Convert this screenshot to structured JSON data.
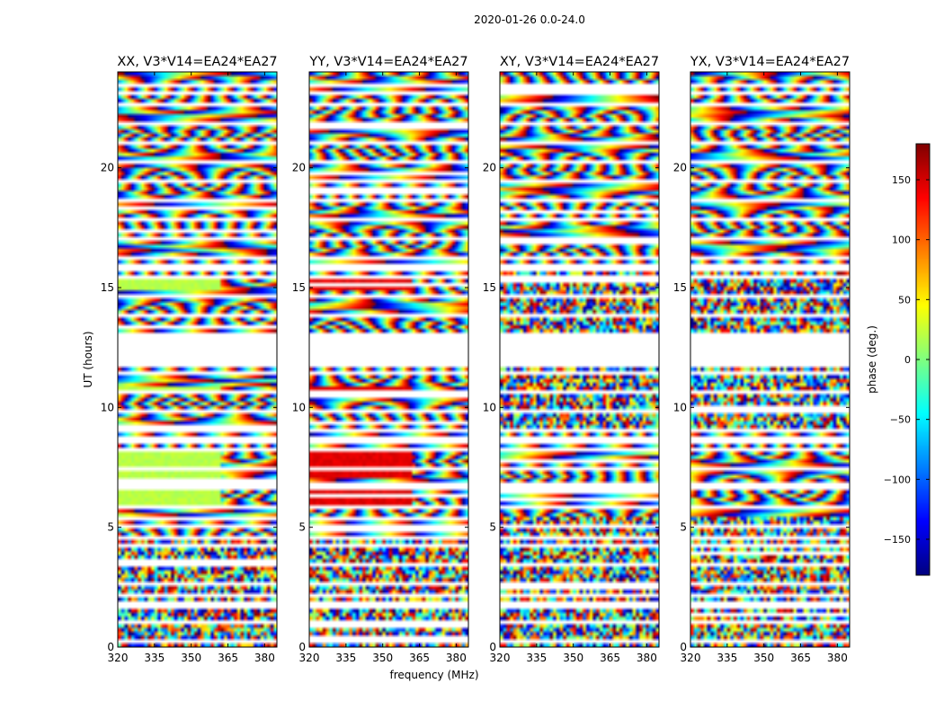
{
  "chart_data": {
    "type": "heatmap",
    "title": "2020-01-26 0.0-24.0",
    "xlabel": "frequency (MHz)",
    "ylabel": "UT (hours)",
    "xlim": [
      320,
      385
    ],
    "ylim": [
      0,
      24
    ],
    "xticks": [
      320,
      335,
      350,
      365,
      380
    ],
    "yticks": [
      0,
      5,
      10,
      15,
      20
    ],
    "panels": [
      {
        "title": "XX, V3*V14=EA24*EA27",
        "flat_phase": 20
      },
      {
        "title": "YY, V3*V14=EA24*EA27",
        "flat_phase": 145
      },
      {
        "title": "XY, V3*V14=EA24*EA27",
        "flat_phase": null
      },
      {
        "title": "YX, V3*V14=EA24*EA27",
        "flat_phase": null
      }
    ],
    "colorbar": {
      "label": "phase (deg.)",
      "range": [
        -180,
        180
      ],
      "ticks": [
        -150,
        -100,
        -50,
        0,
        50,
        100,
        150
      ],
      "colormap": "jet"
    },
    "flagged_ut_ranges": [
      [
        11.65,
        13.0
      ],
      [
        8.55,
        8.75
      ],
      [
        6.6,
        6.85
      ],
      [
        15.75,
        15.95
      ],
      [
        4.45,
        4.6
      ],
      [
        2.05,
        2.2
      ],
      [
        1.55,
        1.7
      ],
      [
        23.1,
        23.2
      ],
      [
        10.55,
        10.7
      ],
      [
        5.7,
        5.85
      ]
    ],
    "flat_phase_ut_ranges": [
      [
        14.9,
        15.3
      ],
      [
        7.1,
        8.2
      ],
      [
        6.0,
        6.5
      ],
      [
        10.6,
        10.9
      ]
    ],
    "flat_phase_freq_max": 362
  }
}
